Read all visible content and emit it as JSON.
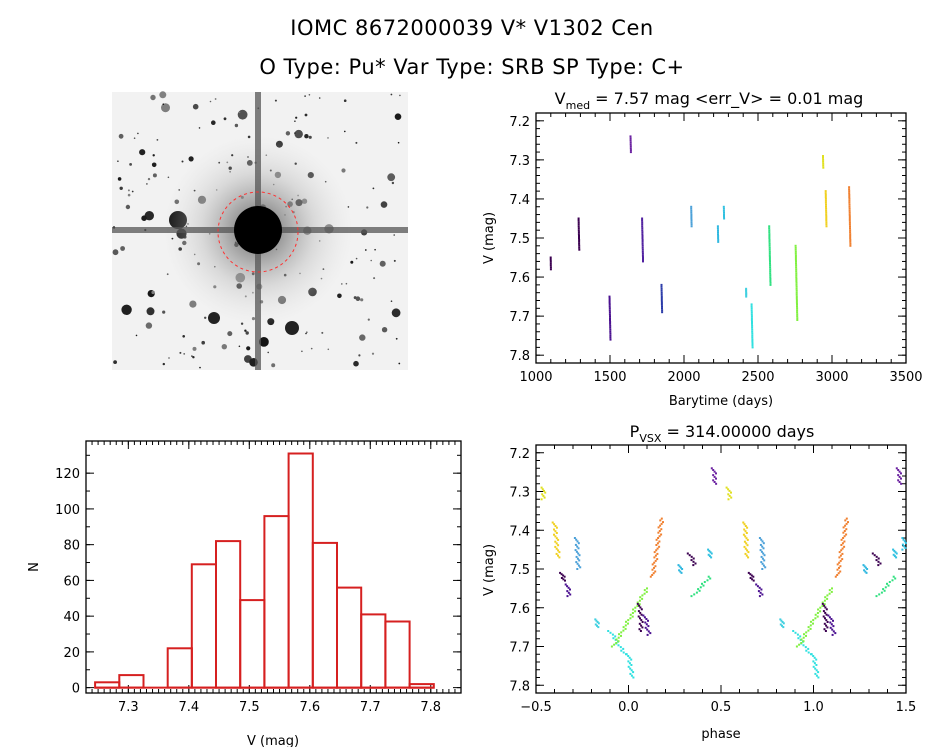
{
  "header": {
    "line1": "IOMC 8672000039    V* V1302 Cen",
    "line2": "O Type: Pu*  Var Type: SRB  SP Type: C+"
  },
  "colors": {
    "hist": "#d62020",
    "finder_circle": "#ff3030"
  },
  "finder": {
    "type": "image",
    "description_icon": "star-field-finder-chart"
  },
  "chart_data": [
    {
      "id": "lightcurve",
      "type": "scatter",
      "title_main": "V",
      "title_sub": "med",
      "title_rest": " = 7.57 mag <err_V> = 0.01 mag",
      "xlabel": "Barytime (days)",
      "ylabel": "V (mag)",
      "xlim": [
        1000,
        3500
      ],
      "ylim": [
        7.82,
        7.18
      ],
      "xticks": [
        1000,
        1500,
        2000,
        2500,
        3000,
        3500
      ],
      "yticks": [
        7.2,
        7.3,
        7.4,
        7.5,
        7.6,
        7.7,
        7.8
      ],
      "segments": [
        {
          "x": 1100,
          "y": [
            7.55,
            7.58
          ],
          "color": "#3b0050"
        },
        {
          "x": 1290,
          "y": [
            7.45,
            7.53
          ],
          "color": "#3b0050"
        },
        {
          "x": 1500,
          "y": [
            7.65,
            7.76
          ],
          "color": "#4a1090"
        },
        {
          "x": 1640,
          "y": [
            7.24,
            7.28
          ],
          "color": "#6a20a0"
        },
        {
          "x": 1720,
          "y": [
            7.45,
            7.56
          ],
          "color": "#5020a0"
        },
        {
          "x": 1850,
          "y": [
            7.62,
            7.69
          ],
          "color": "#2a3aa8"
        },
        {
          "x": 2050,
          "y": [
            7.42,
            7.47
          ],
          "color": "#4aa0d8"
        },
        {
          "x": 2230,
          "y": [
            7.47,
            7.51
          ],
          "color": "#30b8e0"
        },
        {
          "x": 2270,
          "y": [
            7.42,
            7.45
          ],
          "color": "#30c0e0"
        },
        {
          "x": 2420,
          "y": [
            7.63,
            7.65
          ],
          "color": "#40d0e0"
        },
        {
          "x": 2460,
          "y": [
            7.67,
            7.78
          ],
          "color": "#30e0e0"
        },
        {
          "x": 2580,
          "y": [
            7.47,
            7.62
          ],
          "color": "#30e080"
        },
        {
          "x": 2760,
          "y": [
            7.52,
            7.71
          ],
          "color": "#80f040"
        },
        {
          "x": 2940,
          "y": [
            7.29,
            7.32
          ],
          "color": "#e0e020"
        },
        {
          "x": 2960,
          "y": [
            7.38,
            7.47
          ],
          "color": "#f0d020"
        },
        {
          "x": 3120,
          "y": [
            7.37,
            7.52
          ],
          "color": "#f08030"
        }
      ]
    },
    {
      "id": "histogram",
      "type": "bar",
      "xlabel": "V (mag)",
      "ylabel": "N",
      "xlim": [
        7.23,
        7.85
      ],
      "ylim": [
        -3,
        138
      ],
      "xticks": [
        7.3,
        7.4,
        7.5,
        7.6,
        7.7,
        7.8
      ],
      "yticks": [
        0,
        20,
        40,
        60,
        80,
        100,
        120
      ],
      "bin_edges": [
        7.245,
        7.285,
        7.325,
        7.365,
        7.405,
        7.445,
        7.485,
        7.525,
        7.565,
        7.605,
        7.645,
        7.685,
        7.725,
        7.765,
        7.805
      ],
      "values": [
        3,
        7,
        0,
        22,
        69,
        82,
        49,
        96,
        131,
        81,
        56,
        41,
        37,
        2
      ]
    },
    {
      "id": "phase",
      "type": "scatter",
      "title_main": "P",
      "title_sub": "VSX",
      "title_rest": " = 314.00000 days",
      "xlabel": "phase",
      "ylabel": "V (mag)",
      "xlim": [
        -0.5,
        1.5
      ],
      "ylim": [
        7.82,
        7.18
      ],
      "xticks": [
        -0.5,
        0.0,
        0.5,
        1.0,
        1.5
      ],
      "xtick_labels": [
        "−0.5",
        "0.0",
        "0.5",
        "1.0",
        "1.5"
      ],
      "yticks": [
        7.2,
        7.3,
        7.4,
        7.5,
        7.6,
        7.7,
        7.8
      ],
      "segments": [
        {
          "x": -0.46,
          "y": [
            7.29,
            7.32
          ],
          "x2": -0.46,
          "color": "#e0e020"
        },
        {
          "x": -0.4,
          "y": [
            7.38,
            7.47
          ],
          "x2": -0.38,
          "color": "#f0d020"
        },
        {
          "x": -0.36,
          "y": [
            7.51,
            7.53
          ],
          "x2": -0.35,
          "color": "#3b0050"
        },
        {
          "x": -0.33,
          "y": [
            7.54,
            7.57
          ],
          "x2": -0.32,
          "color": "#4a1090"
        },
        {
          "x": -0.28,
          "y": [
            7.42,
            7.5
          ],
          "x2": -0.27,
          "color": "#4aa0d8"
        },
        {
          "x": -0.17,
          "y": [
            7.63,
            7.65
          ],
          "x2": -0.17,
          "color": "#40d0e0"
        },
        {
          "x": -0.1,
          "y": [
            7.66,
            7.72
          ],
          "x2": -0.02,
          "color": "#30e0e0"
        },
        {
          "x": -0.08,
          "y": [
            7.7,
            7.55
          ],
          "x2": 0.1,
          "color": "#80f040"
        },
        {
          "x": 0.0,
          "y": [
            7.72,
            7.78
          ],
          "x2": 0.02,
          "color": "#30e0e0"
        },
        {
          "x": 0.06,
          "y": [
            7.59,
            7.66
          ],
          "x2": 0.07,
          "color": "#3b0050"
        },
        {
          "x": 0.09,
          "y": [
            7.62,
            7.67
          ],
          "x2": 0.11,
          "color": "#4a1090"
        },
        {
          "x": 0.13,
          "y": [
            7.52,
            7.37
          ],
          "x2": 0.18,
          "color": "#f08030"
        },
        {
          "x": 0.28,
          "y": [
            7.49,
            7.51
          ],
          "x2": 0.28,
          "color": "#30b8e0"
        },
        {
          "x": 0.33,
          "y": [
            7.46,
            7.49
          ],
          "x2": 0.36,
          "color": "#3b0050"
        },
        {
          "x": 0.35,
          "y": [
            7.57,
            7.52
          ],
          "x2": 0.44,
          "color": "#30e080"
        },
        {
          "x": 0.44,
          "y": [
            7.45,
            7.47
          ],
          "x2": 0.44,
          "color": "#30c0e0"
        },
        {
          "x": 0.46,
          "y": [
            7.24,
            7.28
          ],
          "x2": 0.47,
          "color": "#6a20a0"
        },
        {
          "x": 0.54,
          "y": [
            7.29,
            7.32
          ],
          "x2": 0.55,
          "color": "#e0e020"
        },
        {
          "x": 0.63,
          "y": [
            7.38,
            7.47
          ],
          "x2": 0.64,
          "color": "#f0d020"
        },
        {
          "x": 0.66,
          "y": [
            7.51,
            7.53
          ],
          "x2": 0.67,
          "color": "#3b0050"
        },
        {
          "x": 0.7,
          "y": [
            7.54,
            7.57
          ],
          "x2": 0.72,
          "color": "#4a1090"
        },
        {
          "x": 0.72,
          "y": [
            7.42,
            7.5
          ],
          "x2": 0.73,
          "color": "#4aa0d8"
        },
        {
          "x": 0.83,
          "y": [
            7.63,
            7.65
          ],
          "x2": 0.83,
          "color": "#40d0e0"
        },
        {
          "x": 0.9,
          "y": [
            7.66,
            7.72
          ],
          "x2": 0.98,
          "color": "#30e0e0"
        },
        {
          "x": 0.92,
          "y": [
            7.7,
            7.55
          ],
          "x2": 1.1,
          "color": "#80f040"
        },
        {
          "x": 1.0,
          "y": [
            7.72,
            7.78
          ],
          "x2": 1.02,
          "color": "#30e0e0"
        },
        {
          "x": 1.06,
          "y": [
            7.59,
            7.66
          ],
          "x2": 1.07,
          "color": "#3b0050"
        },
        {
          "x": 1.09,
          "y": [
            7.62,
            7.67
          ],
          "x2": 1.11,
          "color": "#4a1090"
        },
        {
          "x": 1.13,
          "y": [
            7.52,
            7.37
          ],
          "x2": 1.18,
          "color": "#f08030"
        },
        {
          "x": 1.28,
          "y": [
            7.49,
            7.51
          ],
          "x2": 1.28,
          "color": "#30b8e0"
        },
        {
          "x": 1.33,
          "y": [
            7.46,
            7.49
          ],
          "x2": 1.36,
          "color": "#3b0050"
        },
        {
          "x": 1.35,
          "y": [
            7.57,
            7.52
          ],
          "x2": 1.44,
          "color": "#30e080"
        },
        {
          "x": 1.44,
          "y": [
            7.45,
            7.47
          ],
          "x2": 1.44,
          "color": "#30c0e0"
        },
        {
          "x": 1.46,
          "y": [
            7.24,
            7.28
          ],
          "x2": 1.47,
          "color": "#6a20a0"
        },
        {
          "x": 1.49,
          "y": [
            7.42,
            7.45
          ],
          "x2": 1.49,
          "color": "#30c0e0"
        }
      ]
    }
  ]
}
